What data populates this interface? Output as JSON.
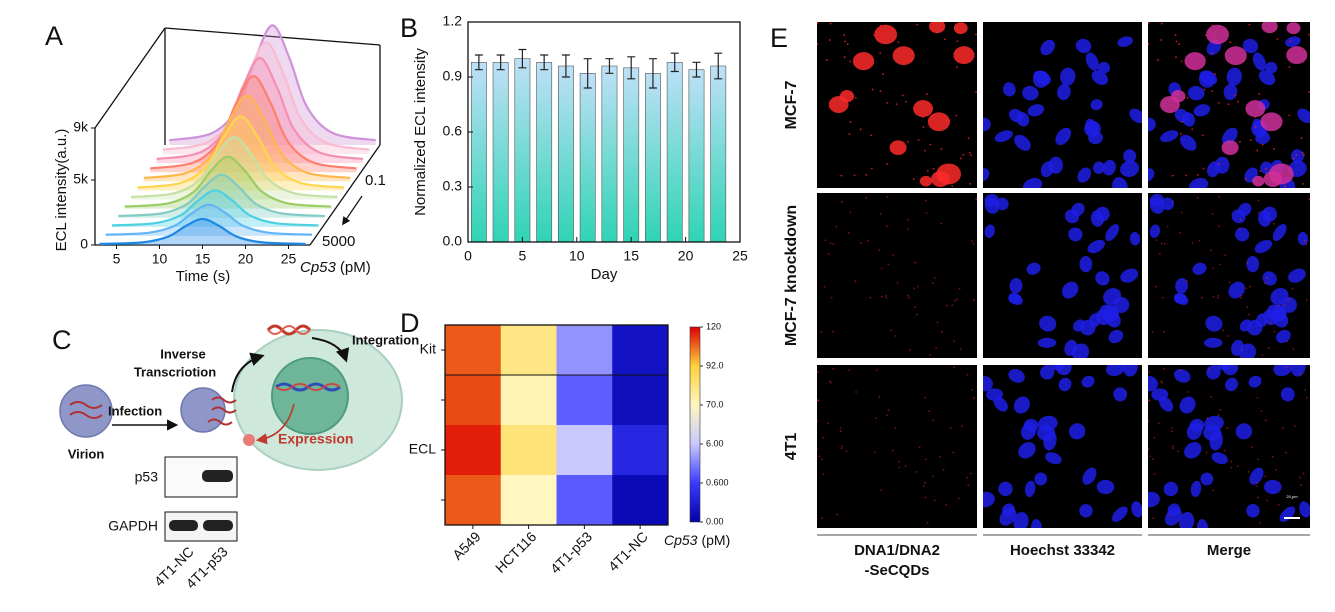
{
  "chart_data": [
    {
      "panel": "A",
      "type": "waterfall",
      "x_label": "Time (s)",
      "y_label": "ECL intensity(a.u.)",
      "depth_label": {
        "name": "Cp53",
        "unit": "(pM)"
      },
      "depth_labels": [
        "0.1",
        "5000"
      ],
      "x": [
        3,
        8,
        11,
        13,
        15,
        17,
        19,
        22,
        27
      ],
      "xlim": [
        2.5,
        27.5
      ],
      "xticks": [
        5,
        10,
        15,
        20,
        25
      ],
      "ylim": [
        0,
        9000
      ],
      "yticks": [
        0,
        {
          "value": 5000,
          "label": "5k"
        },
        {
          "value": 9000,
          "label": "9k"
        }
      ],
      "series": [
        {
          "color": "#1e88e5",
          "values": [
            80,
            200,
            640,
            1440,
            2000,
            1440,
            640,
            200,
            80
          ]
        },
        {
          "color": "#64b5f6",
          "values": [
            96,
            240,
            768,
            1728,
            2400,
            1728,
            768,
            240,
            96
          ]
        },
        {
          "color": "#4dd0e1",
          "values": [
            112,
            280,
            896,
            2016,
            2800,
            2016,
            896,
            280,
            112
          ]
        },
        {
          "color": "#80cbc4",
          "values": [
            132,
            330,
            1056,
            2376,
            3300,
            2376,
            1056,
            330,
            132
          ]
        },
        {
          "color": "#9ccc65",
          "values": [
            160,
            400,
            1280,
            2880,
            4000,
            2880,
            1280,
            400,
            160
          ]
        },
        {
          "color": "#c5e1a5",
          "values": [
            192,
            480,
            1536,
            3456,
            4800,
            3456,
            1536,
            480,
            192
          ]
        },
        {
          "color": "#ffd54f",
          "values": [
            228,
            570,
            1824,
            4104,
            5700,
            4104,
            1824,
            570,
            228
          ]
        },
        {
          "color": "#ffb74d",
          "values": [
            264,
            660,
            2112,
            4752,
            6600,
            4752,
            2112,
            660,
            264
          ]
        },
        {
          "color": "#ff7f6e",
          "values": [
            296,
            740,
            2368,
            5328,
            7400,
            5328,
            2368,
            740,
            296
          ]
        },
        {
          "color": "#f48fb1",
          "values": [
            324,
            810,
            2592,
            5832,
            8100,
            5832,
            2592,
            810,
            324
          ]
        },
        {
          "color": "#f8bbd0",
          "values": [
            344,
            860,
            2752,
            6192,
            8600,
            6192,
            2752,
            860,
            344
          ]
        },
        {
          "color": "#ce93d8",
          "values": [
            368,
            920,
            2944,
            6624,
            9200,
            6624,
            2944,
            920,
            368
          ]
        }
      ]
    },
    {
      "panel": "B",
      "type": "bar",
      "x_label": "Day",
      "y_label": "Normalized ECL intensity",
      "x": [
        1,
        3,
        5,
        7,
        9,
        11,
        13,
        15,
        17,
        19,
        21,
        23
      ],
      "values": [
        0.98,
        0.98,
        1.0,
        0.98,
        0.96,
        0.92,
        0.96,
        0.95,
        0.92,
        0.98,
        0.94,
        0.96
      ],
      "errors": [
        0.04,
        0.04,
        0.05,
        0.04,
        0.06,
        0.08,
        0.04,
        0.06,
        0.08,
        0.05,
        0.04,
        0.07
      ],
      "xlim": [
        0,
        25
      ],
      "xticks": [
        0,
        5,
        10,
        15,
        20,
        25
      ],
      "ylim": [
        0,
        1.2
      ],
      "yticks": [
        {
          "value": 0,
          "label": "0.0"
        },
        0.3,
        0.6,
        0.9,
        1.2
      ],
      "color_top": "#bfe0f7",
      "color_bottom": "#2fd4b4",
      "error_color": "#222"
    },
    {
      "panel": "D",
      "type": "heatmap",
      "categories": [
        "A549",
        "HCT116",
        "4T1-p53",
        "4T1-NC"
      ],
      "rows": [
        "Kit",
        null,
        "ECL",
        null
      ],
      "values": [
        [
          108,
          80,
          4,
          0.2
        ],
        [
          110,
          72,
          2,
          0.15
        ],
        [
          116,
          82,
          6,
          0.4
        ],
        [
          108,
          70,
          1.8,
          0.1
        ]
      ],
      "colorbar_label": {
        "name": "Cp53",
        "unit": "(pM)"
      },
      "colorbar_ticks": [
        {
          "value": 0,
          "label": "0.00"
        },
        {
          "value": 0.6,
          "label": "0.600"
        },
        {
          "value": 6,
          "label": "6.00"
        },
        {
          "value": 70,
          "label": "70.0"
        },
        {
          "value": 92,
          "label": "92.0"
        },
        120
      ],
      "colorbar_colors": [
        "#0000a8",
        "#3a3aff",
        "#c8c8ff",
        "#fff6c0",
        "#ffd23c",
        "#dd0000"
      ]
    }
  ],
  "diagram": {
    "panel": "C",
    "inverse_transcription": [
      "Inverse",
      "Transcriotion"
    ],
    "integration": "Integration",
    "infection": "Infection",
    "virion": "Virion",
    "expression": "Expression",
    "blot_rows": [
      "p53",
      "GAPDH"
    ],
    "blot_lanes": [
      "4T1-NC",
      "4T1-p53"
    ]
  },
  "microscopy": {
    "panel": "E",
    "rows": [
      "MCF-7",
      "MCF-7 knockdown",
      "4T1"
    ],
    "columns": [
      [
        "DNA1/DNA2",
        "-SeCQDs"
      ],
      "Hoechst 33342",
      "Merge"
    ],
    "scale_bar": "20 μm"
  }
}
